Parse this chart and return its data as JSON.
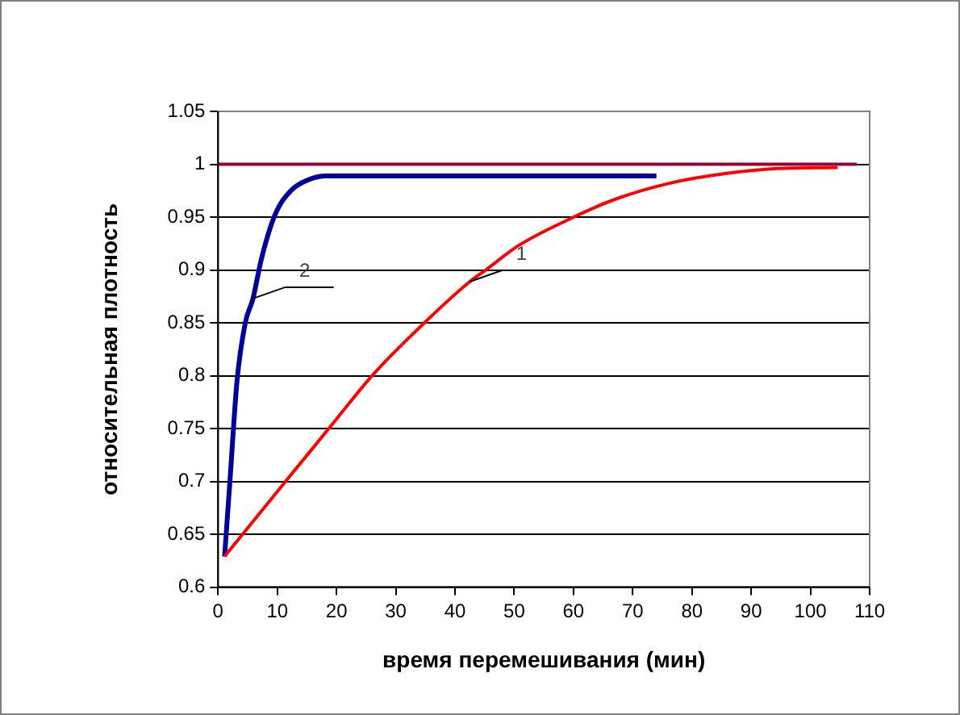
{
  "chart_data": {
    "type": "line",
    "xlabel": "время перемешивания (мин)",
    "ylabel": "относительная плотность",
    "xlim": [
      0,
      110
    ],
    "xticks": [
      0,
      10,
      20,
      30,
      40,
      50,
      60,
      70,
      80,
      90,
      100,
      110
    ],
    "ylim": [
      0.6,
      1.05
    ],
    "yticks": [
      0.6,
      0.65,
      0.7,
      0.75,
      0.8,
      0.85,
      0.9,
      0.95,
      1,
      1.05
    ],
    "grid": "y",
    "marker": "none",
    "line_style": "solid",
    "series": [
      {
        "color": "#ff0000",
        "x": [
          1.1,
          11.4,
          18.7,
          26,
          35.2,
          42.5,
          45.2,
          50.7,
          58.9,
          67.1,
          76.2,
          85.4,
          94.5,
          104.6
        ],
        "values": [
          0.629,
          0.7,
          0.75,
          0.8,
          0.852,
          0.889,
          0.9,
          0.923,
          0.947,
          0.967,
          0.982,
          0.991,
          0.996,
          0.997
        ]
      },
      {
        "color": "#000099",
        "x": [
          1.1,
          2,
          3.2,
          4.6,
          5.9,
          7.3,
          9.6,
          12.3,
          15.1,
          18.3,
          74
        ],
        "values": [
          0.629,
          0.7,
          0.795,
          0.85,
          0.873,
          0.91,
          0.952,
          0.975,
          0.985,
          0.989,
          0.989
        ]
      },
      {
        "color": "#990033",
        "x": [
          0,
          107.8
        ],
        "values": [
          1,
          1
        ]
      }
    ],
    "annotations": [
      {
        "text": "1",
        "x": 42.5,
        "y": 0.889
      },
      {
        "text": "2",
        "x": 5.9,
        "y": 0.873
      }
    ]
  }
}
